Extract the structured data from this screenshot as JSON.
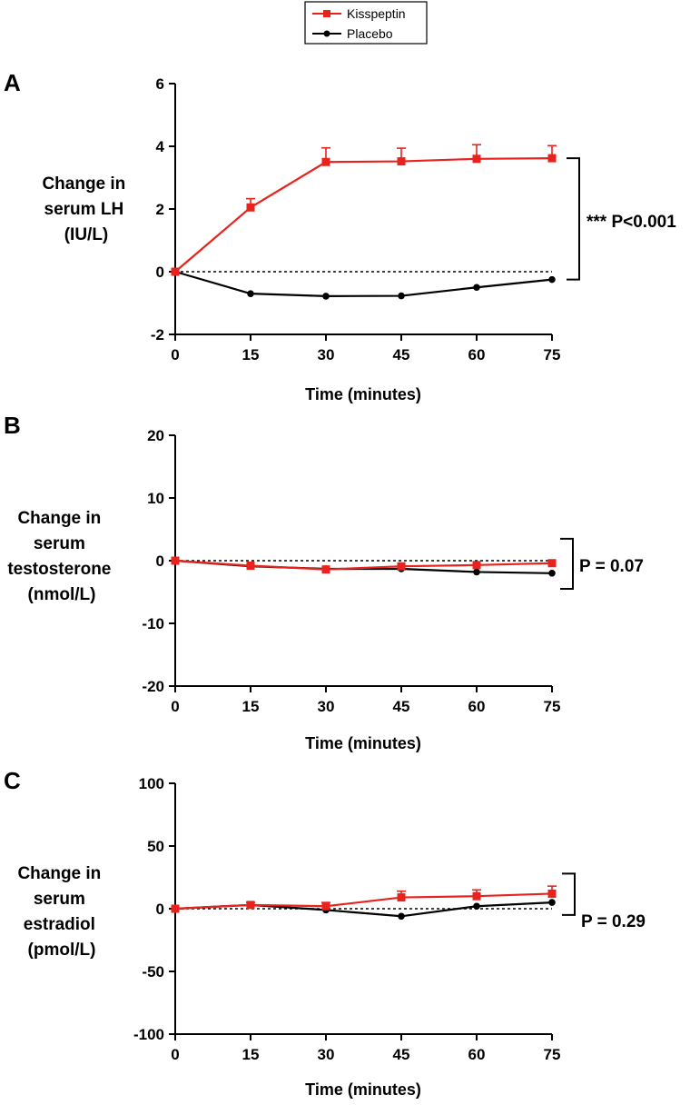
{
  "legend": {
    "entries": [
      {
        "label": "Kisspeptin",
        "color": "#e8231e",
        "marker": "square"
      },
      {
        "label": "Placebo",
        "color": "#000000",
        "marker": "circle"
      }
    ]
  },
  "chart_data": [
    {
      "type": "line",
      "panel_label": "A",
      "ylabel_lines": [
        "Change in",
        "serum LH",
        "(IU/L)"
      ],
      "xlabel": "Time (minutes)",
      "x": [
        0,
        15,
        30,
        45,
        60,
        75
      ],
      "xlim": [
        0,
        75
      ],
      "ylim": [
        -2,
        6
      ],
      "yticks": [
        -2,
        0,
        2,
        4,
        6
      ],
      "series": [
        {
          "name": "Kisspeptin",
          "color": "#e8231e",
          "marker": "square",
          "values": [
            0,
            2.05,
            3.5,
            3.52,
            3.6,
            3.62
          ],
          "error": [
            0,
            0.28,
            0.45,
            0.42,
            0.45,
            0.4
          ]
        },
        {
          "name": "Placebo",
          "color": "#000000",
          "marker": "circle",
          "values": [
            0,
            -0.7,
            -0.78,
            -0.77,
            -0.5,
            -0.25
          ],
          "error": [
            0,
            0,
            0,
            0,
            0,
            0
          ]
        }
      ],
      "annotation": "*** P<0.001",
      "bracket": [
        -0.25,
        3.62
      ]
    },
    {
      "type": "line",
      "panel_label": "B",
      "ylabel_lines": [
        "Change in",
        "serum",
        "testosterone",
        "(nmol/L)"
      ],
      "xlabel": "Time (minutes)",
      "x": [
        0,
        15,
        30,
        45,
        60,
        75
      ],
      "xlim": [
        0,
        75
      ],
      "ylim": [
        -20,
        20
      ],
      "yticks": [
        -20,
        -10,
        0,
        10,
        20
      ],
      "series": [
        {
          "name": "Kisspeptin",
          "color": "#e8231e",
          "marker": "square",
          "values": [
            0,
            -0.8,
            -1.4,
            -0.9,
            -0.7,
            -0.4
          ],
          "error": [
            0,
            0,
            0,
            0,
            0,
            0
          ]
        },
        {
          "name": "Placebo",
          "color": "#000000",
          "marker": "circle",
          "values": [
            0,
            -0.9,
            -1.3,
            -1.3,
            -1.8,
            -2.0
          ],
          "error": [
            0,
            0,
            0,
            0,
            0,
            0
          ]
        }
      ],
      "annotation": "P = 0.07",
      "bracket": [
        -4.5,
        3.5
      ]
    },
    {
      "type": "line",
      "panel_label": "C",
      "ylabel_lines": [
        "Change in",
        "serum",
        "estradiol",
        "(pmol/L)"
      ],
      "xlabel": "Time (minutes)",
      "x": [
        0,
        15,
        30,
        45,
        60,
        75
      ],
      "xlim": [
        0,
        75
      ],
      "ylim": [
        -100,
        100
      ],
      "yticks": [
        -100,
        -50,
        0,
        50,
        100
      ],
      "series": [
        {
          "name": "Kisspeptin",
          "color": "#e8231e",
          "marker": "square",
          "values": [
            0,
            3,
            2,
            9,
            10,
            12
          ],
          "error": [
            0,
            2,
            3,
            5,
            5,
            6
          ]
        },
        {
          "name": "Placebo",
          "color": "#000000",
          "marker": "circle",
          "values": [
            0,
            3,
            -1,
            -6,
            2,
            5
          ],
          "error": [
            0,
            0,
            0,
            0,
            0,
            0
          ]
        }
      ],
      "annotation": "P = 0.29",
      "bracket": [
        -5,
        28
      ]
    }
  ]
}
